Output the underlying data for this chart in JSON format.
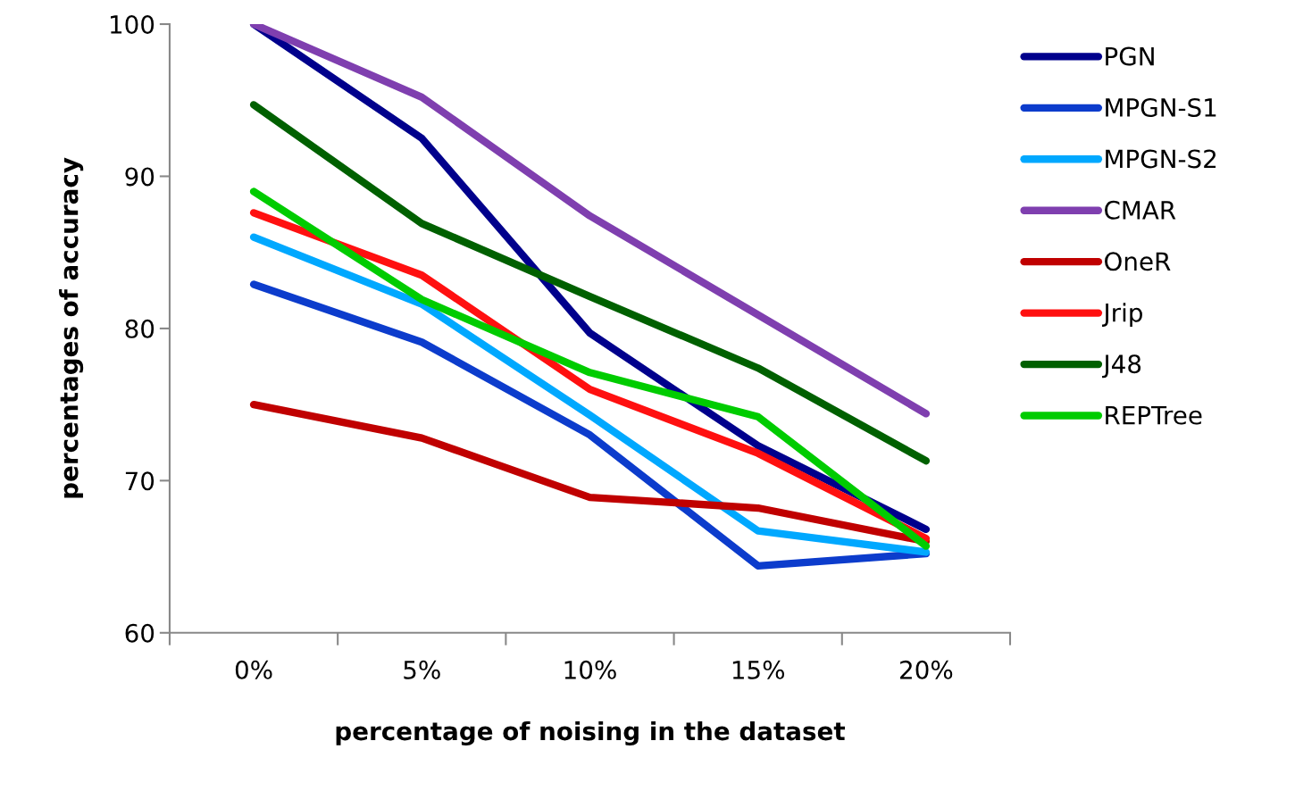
{
  "chart_data": {
    "type": "line",
    "xlabel": "percentage of noising in the dataset",
    "ylabel": "percentages of accuracy",
    "categories": [
      "0%",
      "5%",
      "10%",
      "15%",
      "20%"
    ],
    "series": [
      {
        "name": "PGN",
        "color": "#00008c",
        "values": [
          100,
          92.5,
          79.7,
          72.3,
          66.8
        ]
      },
      {
        "name": "MPGN-S1",
        "color": "#0c3ccc",
        "values": [
          82.9,
          79.1,
          73.0,
          64.4,
          65.2
        ]
      },
      {
        "name": "MPGN-S2",
        "color": "#00a8ff",
        "values": [
          86.0,
          81.6,
          74.3,
          66.7,
          65.3
        ]
      },
      {
        "name": "CMAR",
        "color": "#7f3faf",
        "values": [
          100,
          95.2,
          87.4,
          80.9,
          74.4
        ]
      },
      {
        "name": "OneR",
        "color": "#c00000",
        "values": [
          75.0,
          72.8,
          68.9,
          68.2,
          66.0
        ]
      },
      {
        "name": "Jrip",
        "color": "#ff1010",
        "values": [
          87.6,
          83.5,
          76.0,
          71.8,
          66.2
        ]
      },
      {
        "name": "J48",
        "color": "#006000",
        "values": [
          94.7,
          86.9,
          82.1,
          77.4,
          71.3
        ]
      },
      {
        "name": "REPTree",
        "color": "#00cc00",
        "values": [
          89.0,
          81.9,
          77.1,
          74.2,
          65.7
        ]
      }
    ],
    "ylim": [
      60,
      100
    ],
    "yticks": [
      60,
      70,
      80,
      90,
      100
    ],
    "grid": false,
    "legend": "right",
    "marker": "none",
    "line_style": "solid"
  }
}
